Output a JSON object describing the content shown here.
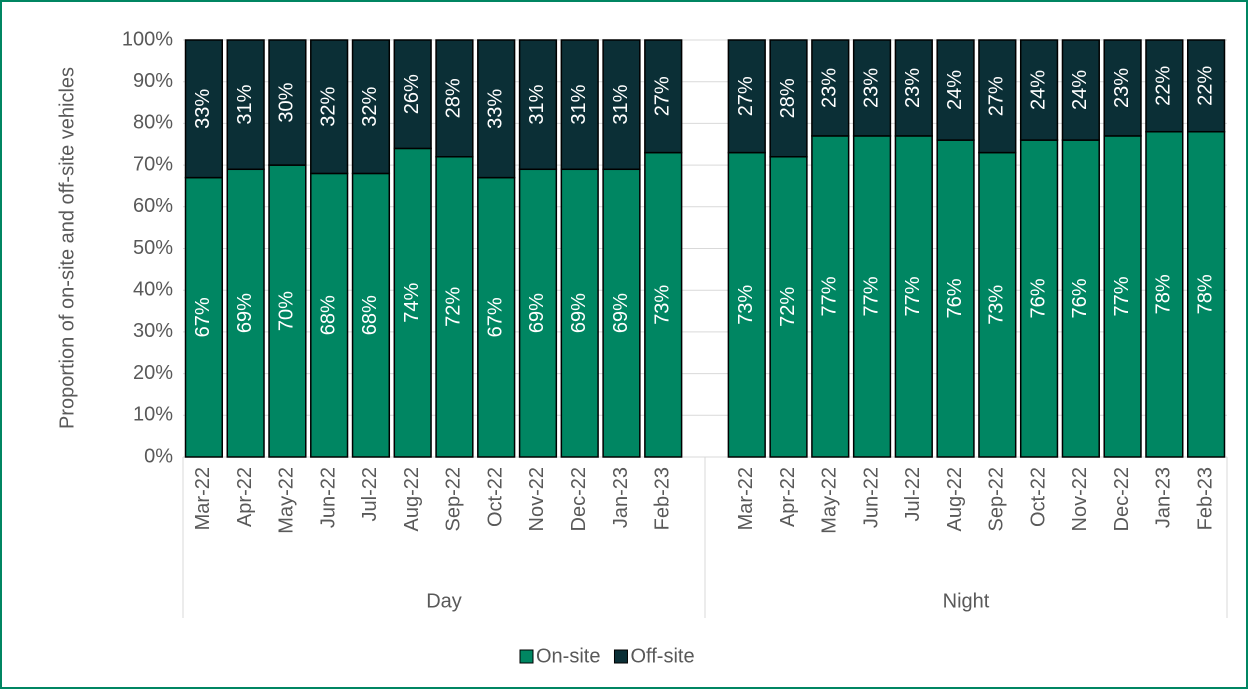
{
  "chart_data": {
    "type": "stacked_bar",
    "y_label": "Proportion of on-site and off-site vehicles",
    "groups": [
      {
        "label": "Day",
        "categories": [
          "Mar-22",
          "Apr-22",
          "May-22",
          "Jun-22",
          "Jul-22",
          "Aug-22",
          "Sep-22",
          "Oct-22",
          "Nov-22",
          "Dec-22",
          "Jan-23",
          "Feb-23"
        ]
      },
      {
        "label": "Night",
        "categories": [
          "Mar-22",
          "Apr-22",
          "May-22",
          "Jun-22",
          "Jul-22",
          "Aug-22",
          "Sep-22",
          "Oct-22",
          "Nov-22",
          "Dec-22",
          "Jan-23",
          "Feb-23"
        ]
      }
    ],
    "series": [
      {
        "name": "On-site",
        "color": "#008662",
        "values": [
          67,
          69,
          70,
          68,
          68,
          74,
          72,
          67,
          69,
          69,
          69,
          73,
          73,
          72,
          77,
          77,
          77,
          76,
          73,
          76,
          76,
          77,
          78,
          78
        ],
        "value_labels": [
          "67%",
          "69%",
          "70%",
          "68%",
          "68%",
          "74%",
          "72%",
          "67%",
          "69%",
          "69%",
          "69%",
          "73%",
          "73%",
          "72%",
          "77%",
          "77%",
          "77%",
          "76%",
          "73%",
          "76%",
          "76%",
          "77%",
          "78%",
          "78%"
        ]
      },
      {
        "name": "Off-site",
        "color": "#0b2f36",
        "values": [
          33,
          31,
          30,
          32,
          32,
          26,
          28,
          33,
          31,
          31,
          31,
          27,
          27,
          28,
          23,
          23,
          23,
          24,
          27,
          24,
          24,
          23,
          22,
          22
        ],
        "value_labels": [
          "33%",
          "31%",
          "30%",
          "32%",
          "32%",
          "26%",
          "28%",
          "33%",
          "31%",
          "31%",
          "31%",
          "27%",
          "27%",
          "28%",
          "23%",
          "23%",
          "23%",
          "24%",
          "27%",
          "24%",
          "24%",
          "23%",
          "22%",
          "22%"
        ]
      }
    ],
    "ylim": [
      0,
      100
    ],
    "yticks": [
      {
        "value": 0,
        "label": "0%"
      },
      {
        "value": 10,
        "label": "10%"
      },
      {
        "value": 20,
        "label": "20%"
      },
      {
        "value": 30,
        "label": "30%"
      },
      {
        "value": 40,
        "label": "40%"
      },
      {
        "value": 50,
        "label": "50%"
      },
      {
        "value": 60,
        "label": "60%"
      },
      {
        "value": 70,
        "label": "70%"
      },
      {
        "value": 80,
        "label": "80%"
      },
      {
        "value": 90,
        "label": "90%"
      },
      {
        "value": 100,
        "label": "100%"
      }
    ],
    "grid": true,
    "legend": "bottom"
  }
}
